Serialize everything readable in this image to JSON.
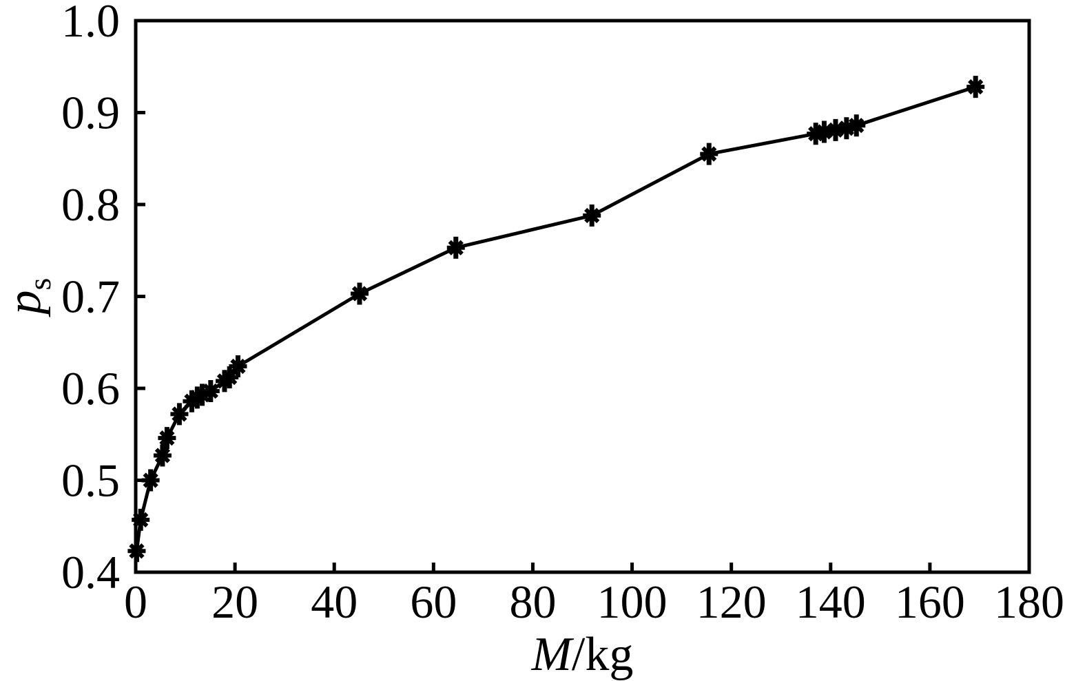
{
  "figure": {
    "background": "#ffffff",
    "ink_color": "#000000"
  },
  "chart_data": {
    "type": "line",
    "title": "",
    "xlabel_italic": "M",
    "xlabel_unit": "/kg",
    "ylabel_main": "p",
    "ylabel_sub": "s",
    "xlim": [
      0,
      180
    ],
    "ylim": [
      0.4,
      1.0
    ],
    "xticks": [
      0,
      20,
      40,
      60,
      80,
      100,
      120,
      140,
      160,
      180
    ],
    "yticks": [
      0.4,
      0.5,
      0.6,
      0.7,
      0.8,
      0.9,
      1.0
    ],
    "grid": false,
    "legend_position": "none",
    "marker": "asterisk",
    "marker_color": "#000000",
    "line_color": "#000000",
    "series": [
      {
        "name": "ps-vs-M",
        "points": [
          [
            0.2,
            0.423
          ],
          [
            1.0,
            0.457
          ],
          [
            3.0,
            0.5
          ],
          [
            5.4,
            0.527
          ],
          [
            6.3,
            0.546
          ],
          [
            8.8,
            0.572
          ],
          [
            11.3,
            0.586
          ],
          [
            12.4,
            0.59
          ],
          [
            13.4,
            0.593
          ],
          [
            15.1,
            0.597
          ],
          [
            17.9,
            0.608
          ],
          [
            18.9,
            0.612
          ],
          [
            20.6,
            0.624
          ],
          [
            45.1,
            0.703
          ],
          [
            64.5,
            0.753
          ],
          [
            91.9,
            0.788
          ],
          [
            115.5,
            0.855
          ],
          [
            137.0,
            0.877
          ],
          [
            138.7,
            0.879
          ],
          [
            141.0,
            0.881
          ],
          [
            143.2,
            0.883
          ],
          [
            145.2,
            0.886
          ],
          [
            169.2,
            0.928
          ]
        ]
      }
    ]
  }
}
